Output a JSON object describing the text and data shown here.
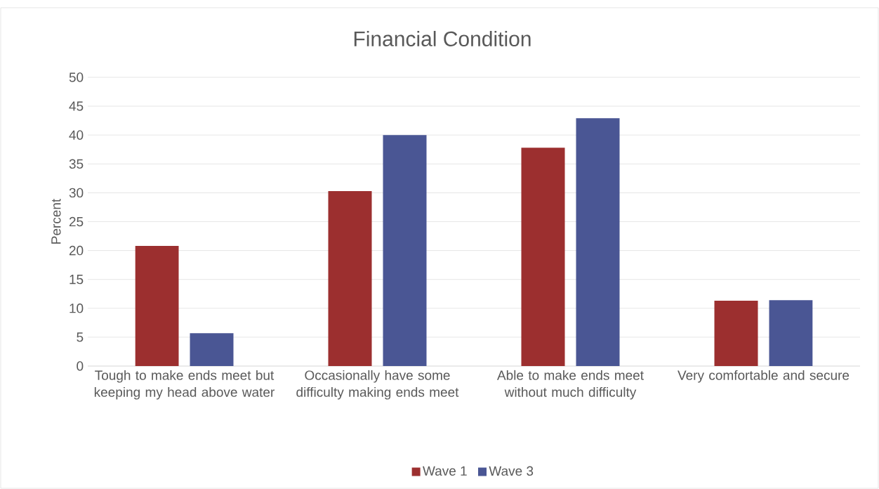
{
  "chart_data": {
    "type": "bar",
    "title": "Financial Condition",
    "ylabel": "Percent",
    "categories": [
      "Tough to make ends meet but keeping my head above water",
      "Occasionally have some difficulty making ends meet",
      "Able to make ends meet without much difficulty",
      "Very comfortable and secure"
    ],
    "series": [
      {
        "name": "Wave 1",
        "color": "#9c2f2f",
        "values": [
          20.8,
          30.3,
          37.8,
          11.3
        ]
      },
      {
        "name": "Wave 3",
        "color": "#4a5694",
        "values": [
          5.7,
          40.0,
          42.9,
          11.4
        ]
      }
    ],
    "ylim": [
      0,
      50
    ],
    "yticks": [
      0,
      5,
      10,
      15,
      20,
      25,
      30,
      35,
      40,
      45,
      50
    ],
    "grid": "y",
    "legend": "bottom"
  }
}
